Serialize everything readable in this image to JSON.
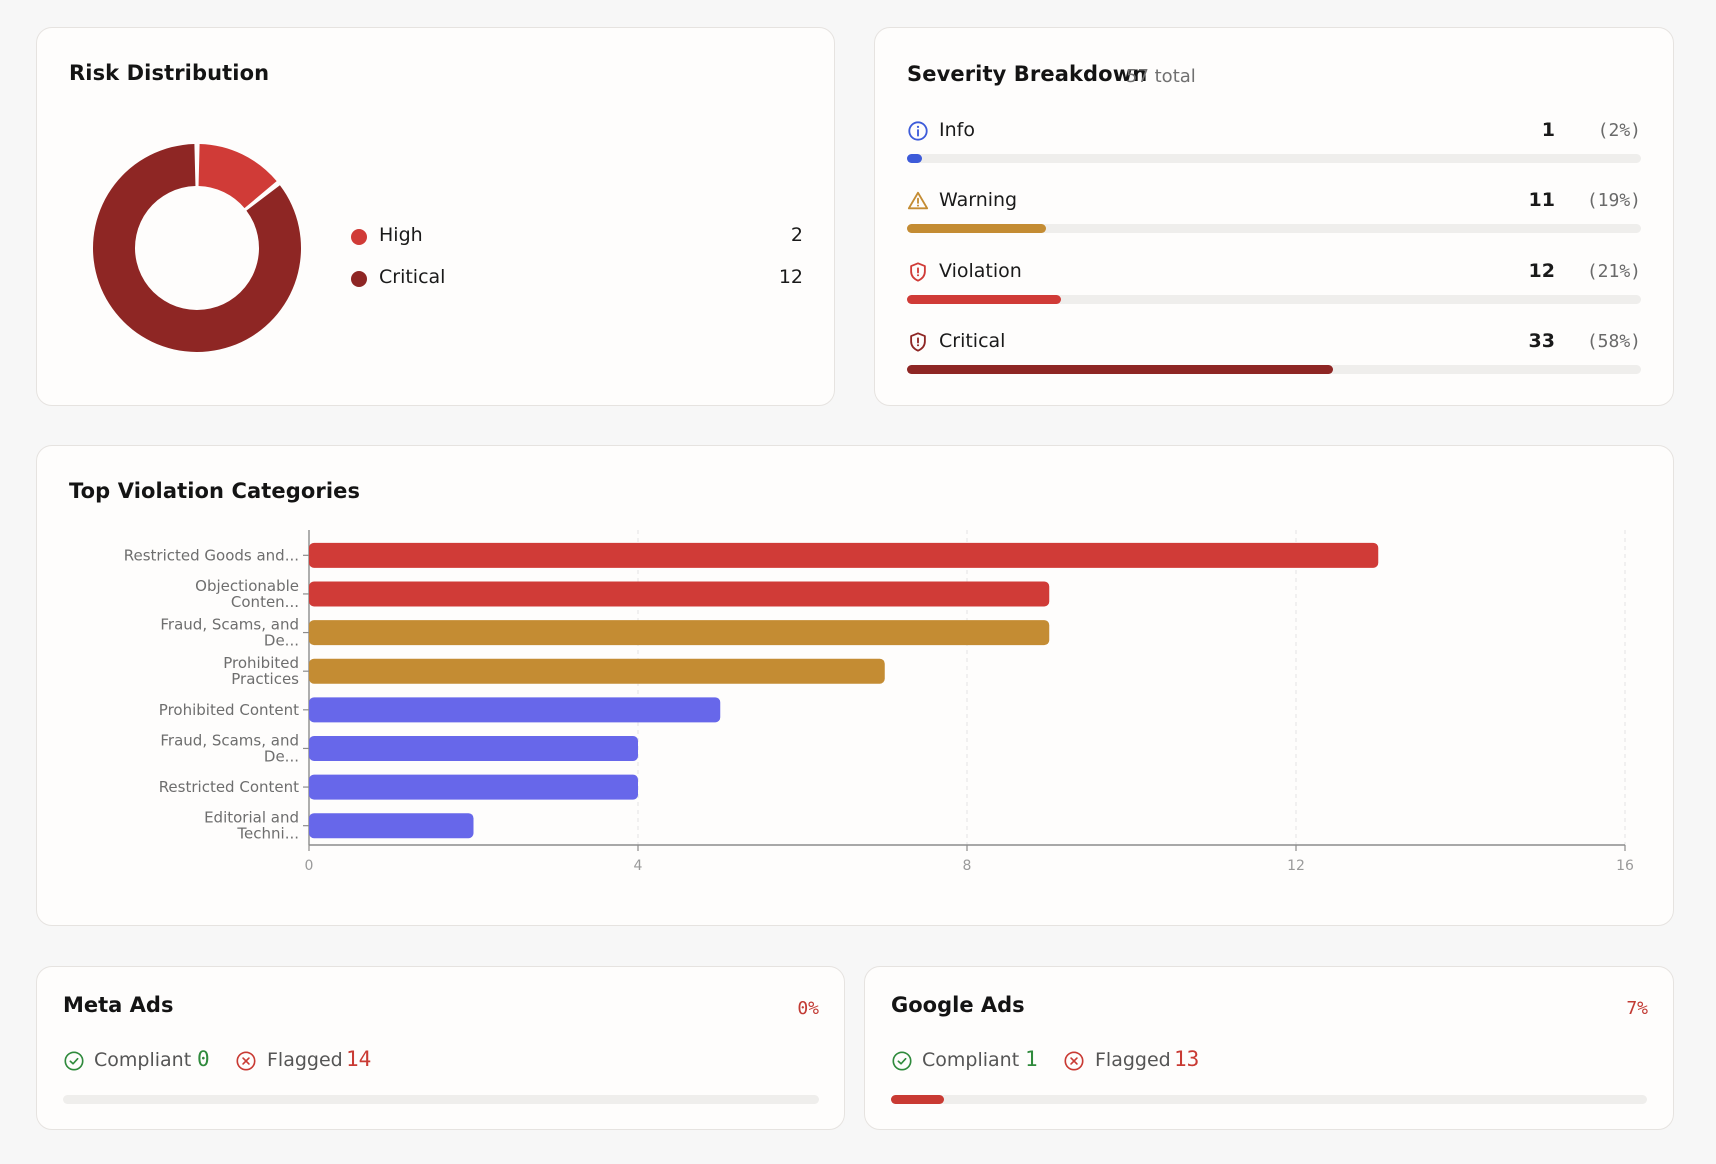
{
  "colors": {
    "high": "#d03b37",
    "critical": "#8e2624",
    "info": "#3d5bd9",
    "warning": "#c48c33",
    "violation": "#d03b37",
    "indigo": "#6767ea",
    "compliant": "#2f8a3c",
    "flagged": "#c93a33"
  },
  "risk": {
    "title": "Risk Distribution",
    "legend": [
      {
        "label": "High",
        "value": "2",
        "color": "#d03b37"
      },
      {
        "label": "Critical",
        "value": "12",
        "color": "#8e2624"
      }
    ]
  },
  "severity": {
    "title": "Severity Breakdown",
    "total": "57 total",
    "rows": [
      {
        "label": "Info",
        "count": "1",
        "pct": "(2%)",
        "fraction": 0.02,
        "color": "#3d5bd9",
        "icon": "info-icon"
      },
      {
        "label": "Warning",
        "count": "11",
        "pct": "(19%)",
        "fraction": 0.19,
        "color": "#c48c33",
        "icon": "warning-icon"
      },
      {
        "label": "Violation",
        "count": "12",
        "pct": "(21%)",
        "fraction": 0.21,
        "color": "#d03b37",
        "icon": "shield-alert-icon"
      },
      {
        "label": "Critical",
        "count": "33",
        "pct": "(58%)",
        "fraction": 0.58,
        "color": "#8e2624",
        "icon": "shield-alert-icon"
      }
    ]
  },
  "chart_data": [
    {
      "type": "pie",
      "donut": true,
      "labels": [
        "High",
        "Critical"
      ],
      "values": [
        2,
        12
      ],
      "colors": [
        "#d03b37",
        "#8e2624"
      ]
    },
    {
      "type": "bar",
      "orientation": "horizontal",
      "title": "Top Violation Categories",
      "categories": [
        [
          "Restricted Goods and..."
        ],
        [
          "Objectionable",
          "Conten..."
        ],
        [
          "Fraud, Scams, and",
          "De..."
        ],
        [
          "Prohibited",
          "Practices"
        ],
        [
          "Prohibited Content"
        ],
        [
          "Fraud, Scams, and",
          "De..."
        ],
        [
          "Restricted Content"
        ],
        [
          "Editorial and",
          "Techni..."
        ]
      ],
      "values": [
        13,
        9,
        9,
        7,
        5,
        4,
        4,
        2
      ],
      "colors": [
        "#d03b37",
        "#d03b37",
        "#c48c33",
        "#c48c33",
        "#6767ea",
        "#6767ea",
        "#6767ea",
        "#6767ea"
      ],
      "xlim": [
        0,
        16
      ],
      "xticks": [
        0,
        4,
        8,
        12,
        16
      ],
      "grid": "vertical-dashed"
    }
  ],
  "platforms": {
    "meta": {
      "title": "Meta Ads",
      "rate": "0%",
      "rate_fraction": 0.0,
      "compliant_label": "Compliant",
      "compliant_value": "0",
      "flagged_label": "Flagged",
      "flagged_value": "14"
    },
    "google": {
      "title": "Google Ads",
      "rate": "7%",
      "rate_fraction": 0.07,
      "compliant_label": "Compliant",
      "compliant_value": "1",
      "flagged_label": "Flagged",
      "flagged_value": "13"
    }
  }
}
